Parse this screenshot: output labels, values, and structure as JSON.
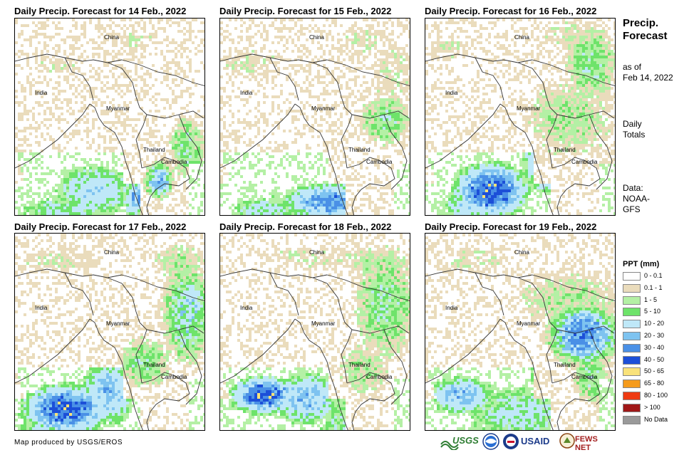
{
  "panels": [
    {
      "title": "Daily Precip. Forecast for 14 Feb., 2022"
    },
    {
      "title": "Daily Precip. Forecast for 15 Feb., 2022"
    },
    {
      "title": "Daily Precip. Forecast for 16 Feb., 2022"
    },
    {
      "title": "Daily Precip. Forecast for 17 Feb., 2022"
    },
    {
      "title": "Daily Precip. Forecast for 18 Feb., 2022"
    },
    {
      "title": "Daily Precip. Forecast for 19 Feb., 2022"
    }
  ],
  "place_labels": {
    "china": "China",
    "india": "India",
    "myanmar": "Myanmar",
    "thailand": "Thailand",
    "cambodia": "Cambodia"
  },
  "sidebar": {
    "title_line1": "Precip.",
    "title_line2": "Forecast",
    "asof_line1": "as of",
    "asof_line2": "Feb 14, 2022",
    "totals_line1": "Daily",
    "totals_line2": "Totals",
    "data_line1": "Data:",
    "data_line2": "NOAA-",
    "data_line3": "GFS"
  },
  "legend": {
    "title": "PPT (mm)",
    "items": [
      {
        "label": "0 - 0.1",
        "color": "#ffffff"
      },
      {
        "label": "0.1 - 1",
        "color": "#eadcbc"
      },
      {
        "label": "1 - 5",
        "color": "#b4f0a5"
      },
      {
        "label": "5 - 10",
        "color": "#6ee36a"
      },
      {
        "label": "10 - 20",
        "color": "#bfe8f8"
      },
      {
        "label": "20 - 30",
        "color": "#7ec3f0"
      },
      {
        "label": "30 - 40",
        "color": "#4a90e6"
      },
      {
        "label": "40 - 50",
        "color": "#1c4fd8"
      },
      {
        "label": "50 - 65",
        "color": "#f9e27a"
      },
      {
        "label": "65 - 80",
        "color": "#f59b1c"
      },
      {
        "label": "80 - 100",
        "color": "#ee3a12"
      },
      {
        "label": "> 100",
        "color": "#a01818"
      },
      {
        "label": "No Data",
        "color": "#9a9a9a"
      }
    ]
  },
  "credit": "Map produced by USGS/EROS",
  "logos": {
    "usgs": "USGS",
    "usaid": "USAID",
    "fewsnet": "FEWS NET"
  }
}
